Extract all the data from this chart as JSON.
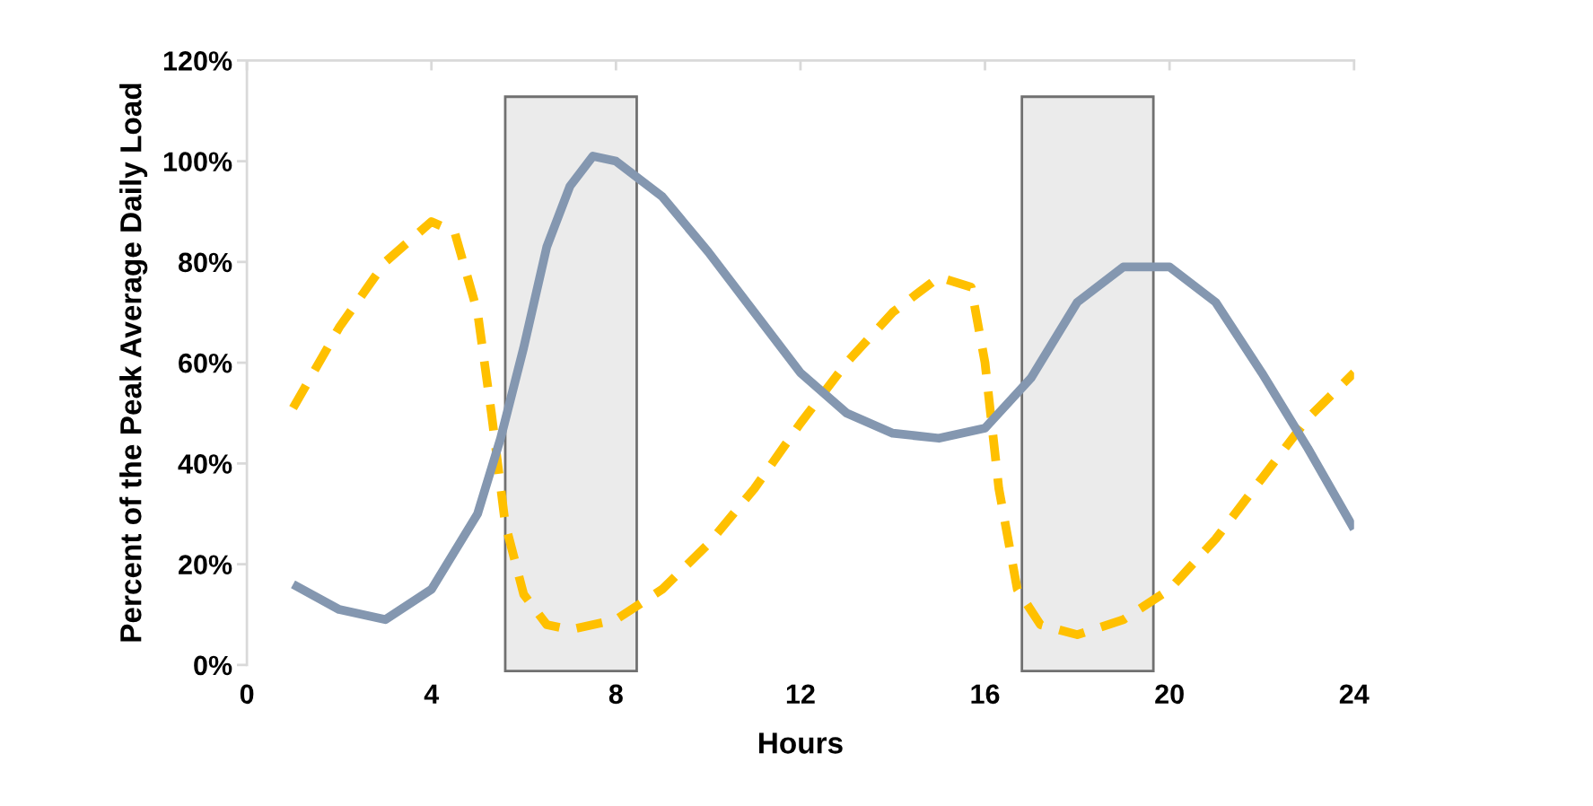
{
  "chart_data": {
    "type": "line",
    "xlabel": "Hours",
    "ylabel": "Percent of the Peak Average Daily Load",
    "xlim": [
      0,
      24
    ],
    "xticks": [
      0,
      4,
      8,
      12,
      16,
      20,
      24
    ],
    "ylim": [
      0,
      120
    ],
    "yticks": [
      {
        "value": 0,
        "label": "0%"
      },
      {
        "value": 20,
        "label": "20%"
      },
      {
        "value": 40,
        "label": "40%"
      },
      {
        "value": 60,
        "label": "60%"
      },
      {
        "value": 80,
        "label": "80%"
      },
      {
        "value": 100,
        "label": "100%"
      },
      {
        "value": 120,
        "label": "120%"
      }
    ],
    "grid": false,
    "bands": [
      {
        "axis": "x",
        "from": 5.6,
        "to": 8.45,
        "color": "#ebebeb"
      },
      {
        "axis": "x",
        "from": 16.8,
        "to": 19.65,
        "color": "#ebebeb"
      }
    ],
    "series": [
      {
        "color": "#ffc000",
        "line_style": "dashed",
        "x": [
          1,
          2,
          3,
          4,
          4.5,
          5,
          5.3,
          5.6,
          6,
          6.5,
          7,
          8,
          9,
          10,
          11,
          12,
          13,
          14,
          15,
          15.7,
          16,
          16.3,
          16.7,
          17.2,
          18,
          19,
          20,
          21,
          22,
          23,
          24
        ],
        "values": [
          51,
          67,
          80,
          88,
          86,
          70,
          50,
          28,
          14,
          8,
          7,
          9,
          15,
          24,
          35,
          48,
          60,
          70,
          77,
          75,
          60,
          35,
          15,
          8,
          6,
          9,
          15,
          25,
          37,
          49,
          58
        ]
      },
      {
        "color": "#8497b0",
        "line_style": "solid",
        "x": [
          1,
          2,
          3,
          4,
          5,
          5.5,
          6,
          6.5,
          7,
          7.5,
          8,
          9,
          10,
          11,
          12,
          13,
          14,
          15,
          16,
          17,
          18,
          19,
          20,
          21,
          22,
          23,
          24
        ],
        "values": [
          16,
          11,
          9,
          15,
          30,
          45,
          63,
          83,
          95,
          101,
          100,
          93,
          82,
          70,
          58,
          50,
          46,
          45,
          47,
          57,
          72,
          79,
          79,
          72,
          58,
          43,
          27
        ]
      }
    ]
  }
}
